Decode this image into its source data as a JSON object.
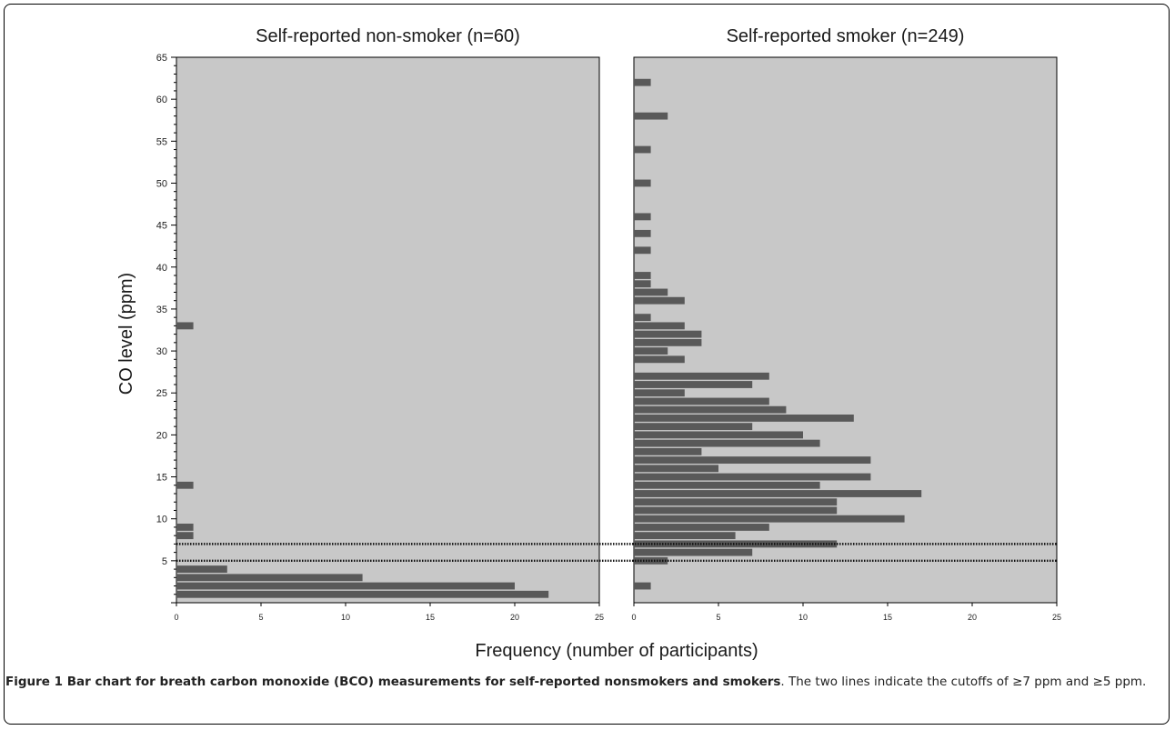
{
  "chart_data": [
    {
      "type": "bar",
      "orientation": "horizontal",
      "title": "Self-reported non-smoker (n=60)",
      "xlabel": "Frequency (number of participants)",
      "ylabel": "CO level (ppm)",
      "xlim": [
        0,
        25
      ],
      "ylim": [
        0,
        65
      ],
      "xticks": [
        0,
        5,
        10,
        15,
        20,
        25
      ],
      "yticks": [
        5,
        10,
        15,
        20,
        25,
        30,
        35,
        40,
        45,
        50,
        55,
        60,
        65
      ],
      "grid": false,
      "bar_color": "#595959",
      "background_color": "#c8c8c8",
      "y": [
        1,
        2,
        3,
        4,
        8,
        9,
        14,
        33
      ],
      "values": [
        22,
        20,
        11,
        3,
        1,
        1,
        1,
        1
      ]
    },
    {
      "type": "bar",
      "orientation": "horizontal",
      "title": "Self-reported smoker (n=249)",
      "xlabel": "Frequency (number of participants)",
      "xlim": [
        0,
        25
      ],
      "ylim": [
        0,
        65
      ],
      "xticks": [
        0,
        5,
        10,
        15,
        20,
        25
      ],
      "grid": false,
      "bar_color": "#595959",
      "background_color": "#c8c8c8",
      "y": [
        2,
        5,
        6,
        7,
        8,
        9,
        10,
        11,
        12,
        13,
        14,
        15,
        16,
        17,
        18,
        19,
        20,
        21,
        22,
        23,
        24,
        25,
        26,
        27,
        29,
        30,
        31,
        32,
        33,
        34,
        36,
        37,
        38,
        39,
        42,
        44,
        46,
        50,
        54,
        58,
        62
      ],
      "values": [
        1,
        2,
        7,
        12,
        6,
        8,
        16,
        12,
        12,
        17,
        11,
        14,
        5,
        14,
        4,
        11,
        10,
        7,
        13,
        9,
        8,
        3,
        7,
        8,
        3,
        2,
        4,
        4,
        3,
        1,
        3,
        2,
        1,
        1,
        1,
        1,
        1,
        1,
        1,
        2,
        1
      ]
    }
  ],
  "reference_lines": [
    {
      "y": 7,
      "style": "dotted",
      "color": "#111111"
    },
    {
      "y": 5,
      "style": "dotted",
      "color": "#111111"
    }
  ],
  "caption": {
    "bold": "Figure 1 Bar chart for breath carbon monoxide (BCO) measurements for self-reported nonsmokers and smokers",
    "rest": ". The two lines indicate the cutoffs of ≥7 ppm and ≥5 ppm."
  }
}
